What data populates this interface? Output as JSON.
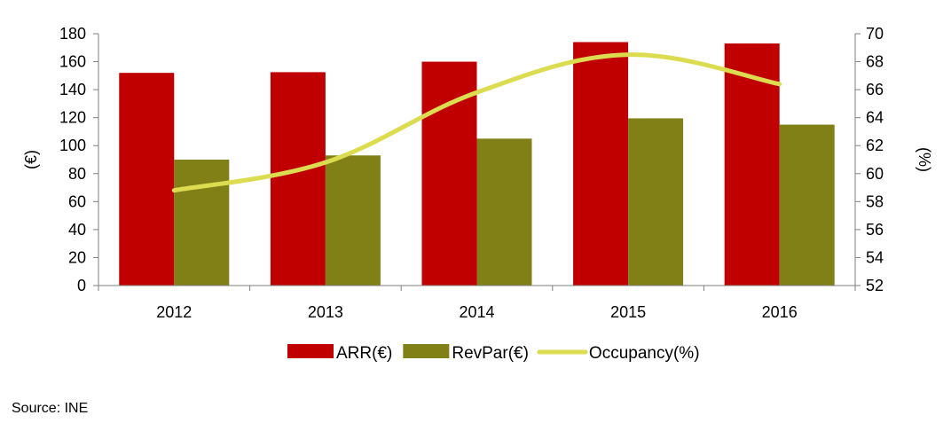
{
  "chart_data": {
    "type": "bar",
    "categories": [
      "2012",
      "2013",
      "2014",
      "2015",
      "2016"
    ],
    "series": [
      {
        "name": "ARR(€)",
        "type": "bar",
        "axis": "left",
        "color": "#c00000",
        "values": [
          152,
          152.5,
          160,
          174,
          173
        ]
      },
      {
        "name": "RevPar(€)",
        "type": "bar",
        "axis": "left",
        "color": "#808016",
        "values": [
          90,
          93,
          105,
          119.5,
          115
        ]
      },
      {
        "name": "Occupancy(%)",
        "type": "line",
        "axis": "right",
        "color": "#dcdc50",
        "smooth": true,
        "values": [
          58.8,
          60.8,
          65.8,
          68.5,
          66.4
        ]
      }
    ],
    "y_left": {
      "label": "(€)",
      "lim": [
        0,
        180
      ],
      "ticks": [
        "0",
        "20",
        "40",
        "60",
        "80",
        "100",
        "120",
        "140",
        "160",
        "180"
      ]
    },
    "y_right": {
      "label": "(%)",
      "lim": [
        52,
        70
      ],
      "ticks": [
        "52",
        "54",
        "56",
        "58",
        "60",
        "62",
        "64",
        "66",
        "68",
        "70"
      ]
    },
    "grid": false,
    "legend": "bottom"
  },
  "source": "Source: INE"
}
